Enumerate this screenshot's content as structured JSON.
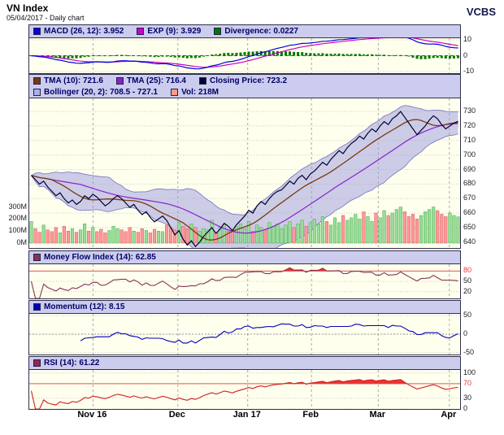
{
  "header": {
    "title": "VN Index",
    "subtitle": "05/04/2017 - Daily chart",
    "brand": "VCBS"
  },
  "colors": {
    "panel_legend_bg": "#ccccee",
    "plot_bg": "#ffffee",
    "macd_line": "#0000dd",
    "macd_signal": "#cc00cc",
    "macd_hist": "#007700",
    "zero_dash_green": "#008800",
    "tma10": "#7a3a10",
    "tma25": "#8822cc",
    "close_line": "#000033",
    "bollinger_fill": "#9999dd",
    "bollinger_edge": "#5555bb",
    "vol_up": "#99dd99",
    "vol_down": "#ff9999",
    "vol_edge_up": "#44aa44",
    "vol_edge_down": "#cc5555",
    "mfi_line": "#883355",
    "momentum_line": "#0000bb",
    "rsi_line": "#cc2222",
    "rsi_fill": "#ee3333",
    "threshold_red": "#ee5555"
  },
  "legends": {
    "macd": [
      {
        "swatch": "#0000dd",
        "label": "MACD (26, 12): 3.952"
      },
      {
        "swatch": "#cc00cc",
        "label": "EXP (9): 3.929"
      },
      {
        "swatch": "#007700",
        "label": "Divergence: 0.0227"
      }
    ],
    "main1": [
      {
        "swatch": "#7a3a10",
        "label": "TMA (10): 721.6"
      },
      {
        "swatch": "#8822cc",
        "label": "TMA (25): 716.4"
      },
      {
        "swatch": "#000033",
        "label": "Closing Price: 723.2"
      }
    ],
    "main2": [
      {
        "swatch": "#aab0ee",
        "label": "Bollinger (20, 2): 708.5 - 727.1"
      },
      {
        "swatch": "#ff9988",
        "label": "Vol: 218M"
      }
    ],
    "mfi": [
      {
        "swatch": "#883355",
        "label": "Money Flow Index (14): 62.85"
      }
    ],
    "momentum": [
      {
        "swatch": "#0000bb",
        "label": "Momentum (12): 8.15"
      }
    ],
    "rsi": [
      {
        "swatch": "#992255",
        "label": "RSI (14): 61.22"
      }
    ]
  },
  "chart_data": {
    "type": "line",
    "title": "VN Index daily chart with MACD, Bollinger/TMA, MFI, Momentum and RSI panels",
    "indicator_values": {
      "macd_26_12": 3.952,
      "exp_9": 3.929,
      "divergence": 0.0227,
      "tma_10": 721.6,
      "tma_25": 716.4,
      "closing_price": 723.2,
      "bollinger_low": 708.5,
      "bollinger_high": 727.1,
      "volume": "218M",
      "money_flow_index_14": 62.85,
      "momentum_12": 8.15,
      "rsi_14": 61.22
    },
    "x_axis_labels": [
      {
        "label": "Nov 16",
        "f": 0.148
      },
      {
        "label": "Dec",
        "f": 0.345
      },
      {
        "label": "Jan 17",
        "f": 0.507
      },
      {
        "label": "Feb",
        "f": 0.655
      },
      {
        "label": "Mar",
        "f": 0.81
      },
      {
        "label": "Apr",
        "f": 0.975
      }
    ],
    "close": [
      686,
      683,
      680,
      682,
      678,
      675,
      672,
      674,
      670,
      667,
      669,
      666,
      668,
      672,
      670,
      673,
      671,
      668,
      665,
      667,
      670,
      672,
      670,
      667,
      664,
      666,
      662,
      659,
      661,
      657,
      654,
      656,
      658,
      655,
      650,
      645,
      648,
      642,
      638,
      641,
      637,
      640,
      644,
      647,
      650,
      646,
      649,
      653,
      651,
      648,
      652,
      655,
      658,
      662,
      660,
      665,
      668,
      666,
      670,
      673,
      675,
      676,
      679,
      682,
      680,
      684,
      686,
      683,
      687,
      689,
      692,
      695,
      693,
      697,
      700,
      703,
      701,
      705,
      708,
      710,
      713,
      711,
      715,
      718,
      716,
      720,
      723,
      721,
      725,
      727,
      730,
      726,
      722,
      718,
      714,
      717,
      720,
      724,
      727,
      725,
      721,
      718,
      720,
      722,
      723.2
    ],
    "volume_m": [
      180,
      120,
      90,
      150,
      110,
      95,
      130,
      85,
      140,
      100,
      120,
      90,
      110,
      160,
      100,
      130,
      95,
      115,
      85,
      105,
      140,
      120,
      110,
      95,
      130,
      100,
      90,
      120,
      105,
      85,
      115,
      100,
      95,
      150,
      130,
      110,
      170,
      140,
      120,
      160,
      130,
      100,
      120,
      110,
      190,
      90,
      130,
      150,
      100,
      110,
      140,
      160,
      120,
      180,
      100,
      150,
      130,
      110,
      170,
      140,
      160,
      120,
      150,
      180,
      130,
      160,
      190,
      140,
      170,
      200,
      160,
      220,
      180,
      150,
      210,
      170,
      230,
      190,
      210,
      240,
      200,
      260,
      220,
      180,
      250,
      210,
      270,
      230,
      250,
      280,
      300,
      260,
      220,
      240,
      200,
      230,
      260,
      280,
      300,
      270,
      240,
      220,
      250,
      230,
      218
    ],
    "panels": {
      "macd": {
        "range": [
          -11,
          11
        ],
        "ticks": [
          {
            "v": 10,
            "label": "10"
          },
          {
            "v": 0,
            "label": "0"
          },
          {
            "v": -10,
            "label": "-10"
          }
        ]
      },
      "price": {
        "range": [
          636,
          739
        ],
        "ticks": [
          {
            "v": 730,
            "label": "730"
          },
          {
            "v": 720,
            "label": "720"
          },
          {
            "v": 710,
            "label": "710"
          },
          {
            "v": 700,
            "label": "700"
          },
          {
            "v": 690,
            "label": "690"
          },
          {
            "v": 680,
            "label": "680"
          },
          {
            "v": 670,
            "label": "670"
          },
          {
            "v": 660,
            "label": "660"
          },
          {
            "v": 650,
            "label": "650"
          },
          {
            "v": 640,
            "label": "640"
          }
        ]
      },
      "volume": {
        "ticks": [
          {
            "v": 300,
            "label": "300M"
          },
          {
            "v": 200,
            "label": "200M"
          },
          {
            "v": 100,
            "label": "100M"
          },
          {
            "v": 0,
            "label": "0M"
          }
        ]
      },
      "mfi": {
        "range": [
          0,
          100
        ],
        "threshold": 80,
        "ticks": [
          {
            "v": 80,
            "label": "80",
            "red": true
          },
          {
            "v": 50,
            "label": "50"
          },
          {
            "v": 20,
            "label": "20"
          }
        ]
      },
      "momentum": {
        "range": [
          -55,
          55
        ],
        "ticks": [
          {
            "v": 50,
            "label": "50"
          },
          {
            "v": 0,
            "label": "0"
          },
          {
            "v": -50,
            "label": "-50"
          }
        ]
      },
      "rsi": {
        "range": [
          0,
          108
        ],
        "threshold": 70,
        "ticks": [
          {
            "v": 100,
            "label": "100"
          },
          {
            "v": 70,
            "label": "70",
            "red": true
          },
          {
            "v": 30,
            "label": "30"
          },
          {
            "v": 0,
            "label": "0"
          }
        ]
      }
    }
  }
}
